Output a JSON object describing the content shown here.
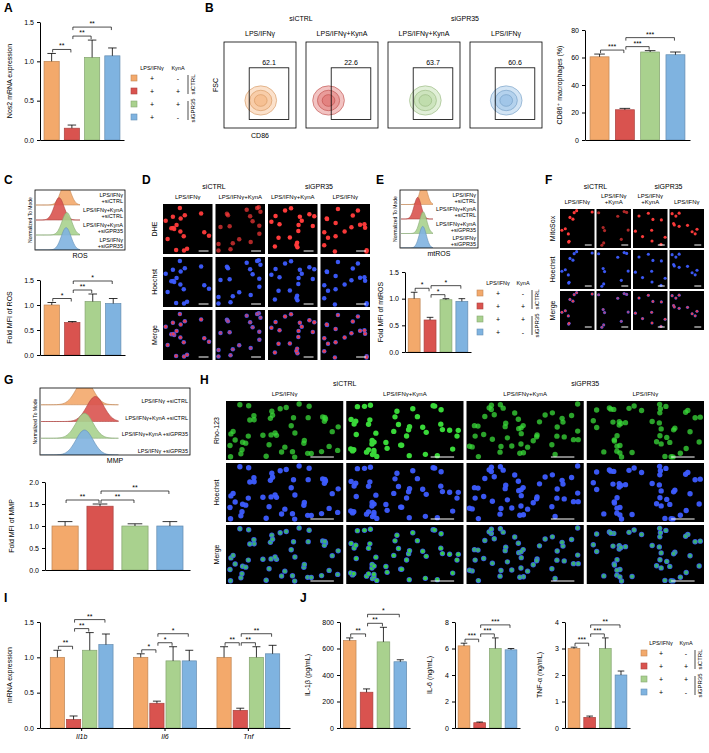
{
  "conditions": {
    "headers": [
      "LPS/IFNγ",
      "KynA"
    ],
    "marks": [
      [
        "+",
        "-"
      ],
      [
        "+",
        "+"
      ],
      [
        "+",
        "+"
      ],
      [
        "+",
        "-"
      ]
    ],
    "groups": [
      "siCTRL",
      "siGPR35"
    ],
    "colors": [
      "#f3a96b",
      "#d9534f",
      "#a9d18e",
      "#7fb3e0"
    ]
  },
  "flow": {
    "panel": "B",
    "groups": [
      "siCTRL",
      "siGPR35"
    ],
    "titles": [
      "LPS/IFNγ",
      "LPS/IFNγ+KynA",
      "LPS/IFNγ+KynA",
      "LPS/IFNγ"
    ],
    "gates": [
      62.1,
      22.6,
      63.7,
      60.6
    ],
    "x_label": "CD86",
    "y_label": "FSC"
  },
  "histograms": [
    {
      "x_label": "ROS",
      "y_label": "Normalized To Mode",
      "labels": [
        "LPS/IFNγ +siCTRL",
        "LPS/IFNγ+KynA +siCTRL",
        "LPS/IFNγ+KynA +siGPR35",
        "LPS/IFNγ +siGPR35"
      ]
    },
    {
      "x_label": "mtROS",
      "y_label": "Normalized To Mode",
      "labels": [
        "LPS/IFNγ +siCTRL",
        "LPS/IFNγ+KynA +siCTRL",
        "LPS/IFNγ+KynA +siGPR35",
        "LPS/IFNγ +siGPR35"
      ]
    },
    {
      "x_label": "MMP",
      "y_label": "Normalized To Mode",
      "labels": [
        "LPS/IFNγ +siCTRL",
        "LPS/IFNγ+KynA +siCTRL",
        "LPS/IFNγ+KynA +siGPR35",
        "LPS/IFNγ +siGPR35"
      ]
    }
  ],
  "microscopy": [
    {
      "panel": "D",
      "groups": [
        "siCTRL",
        "siGPR35"
      ],
      "columns": [
        "LPS/IFNγ",
        "LPS/IFNγ+KynA",
        "LPS/IFNγ+KynA",
        "LPS/IFNγ"
      ],
      "rows": [
        "DHE",
        "Hoechst",
        "Merge"
      ],
      "color": "#ff3b3b"
    },
    {
      "panel": "F",
      "groups": [
        "siCTRL",
        "siGPR35"
      ],
      "columns": [
        "LPS/IFNγ",
        "LPS/IFNγ+KynA",
        "LPS/IFNγ+KynA",
        "LPS/IFNγ"
      ],
      "rows": [
        "MitoSox",
        "Hoechst",
        "Merge"
      ],
      "color": "#ff3b3b"
    },
    {
      "panel": "H",
      "groups": [
        "siCTRL",
        "siGPR35"
      ],
      "columns": [
        "LPS/IFNγ",
        "LPS/IFNγ+KynA",
        "LPS/IFNγ+KynA",
        "LPS/IFNγ"
      ],
      "rows": [
        "Rho-123",
        "Hoechst",
        "Merge"
      ],
      "color": "#39d839"
    }
  ],
  "chart_data": [
    {
      "panel": "A",
      "type": "bar",
      "y_label": "Nos2 mRNA expression",
      "categories": [
        null,
        null,
        null,
        null
      ],
      "values": [
        1.0,
        0.15,
        1.05,
        1.07
      ],
      "errors": [
        0.1,
        0.04,
        0.22,
        0.1
      ],
      "colors": [
        "#f3a96b",
        "#d9534f",
        "#a9d18e",
        "#7fb3e0"
      ],
      "ylim": [
        0,
        1.5
      ],
      "yticks": [
        {
          "value": 0,
          "label": "0.0"
        },
        {
          "value": 0.5,
          "label": "0.5"
        },
        {
          "value": 1,
          "label": "1.0"
        },
        {
          "value": 1.5,
          "label": "1.5"
        }
      ],
      "tick_labels": "y",
      "significance": [
        {
          "bars": [
            0,
            1
          ],
          "label": "**"
        },
        {
          "bars": [
            1,
            2
          ],
          "label": "**"
        },
        {
          "bars": [
            1,
            3
          ],
          "label": "**"
        }
      ]
    },
    {
      "type": "bar",
      "y_label": "CD86⁺ macrophages (%)",
      "categories": [
        null,
        null,
        null,
        null
      ],
      "values": [
        60.5,
        22,
        64,
        62
      ],
      "errors": [
        2,
        1,
        1,
        2
      ],
      "colors": [
        "#f3a96b",
        "#d9534f",
        "#a9d18e",
        "#7fb3e0"
      ],
      "ylim": [
        0,
        80
      ],
      "yticks": [
        0,
        20,
        40,
        60,
        80
      ],
      "tick_labels": "y",
      "significance": [
        {
          "bars": [
            0,
            1
          ],
          "label": "***"
        },
        {
          "bars": [
            1,
            2
          ],
          "label": "***"
        },
        {
          "bars": [
            1,
            3
          ],
          "label": "***"
        }
      ]
    },
    {
      "panel": "C",
      "type": "bar",
      "y_label": "Fold MFI of ROS",
      "categories": [
        null,
        null,
        null,
        null
      ],
      "values": [
        1.0,
        0.65,
        1.07,
        1.03
      ],
      "errors": [
        0.05,
        0.02,
        0.15,
        0.1
      ],
      "colors": [
        "#f3a96b",
        "#d9534f",
        "#a9d18e",
        "#7fb3e0"
      ],
      "ylim": [
        0,
        1.5
      ],
      "yticks": [
        {
          "value": 0,
          "label": "0.0"
        },
        {
          "value": 0.5,
          "label": "0.5"
        },
        {
          "value": 1,
          "label": "1.0"
        },
        {
          "value": 1.5,
          "label": "1.5"
        }
      ],
      "tick_labels": "y",
      "significance": [
        {
          "bars": [
            0,
            1
          ],
          "label": "*"
        },
        {
          "bars": [
            1,
            2
          ],
          "label": "**"
        },
        {
          "bars": [
            1,
            3
          ],
          "label": "*"
        }
      ]
    },
    {
      "panel": "E",
      "type": "bar",
      "y_label": "Fold MFI of mtROS",
      "categories": [
        null,
        null,
        null,
        null
      ],
      "values": [
        1.0,
        0.6,
        0.98,
        0.95
      ],
      "errors": [
        0.12,
        0.05,
        0.02,
        0.05
      ],
      "colors": [
        "#f3a96b",
        "#d9534f",
        "#a9d18e",
        "#7fb3e0"
      ],
      "ylim": [
        0,
        1.5
      ],
      "yticks": [
        {
          "value": 0,
          "label": "0.0"
        },
        {
          "value": 0.5,
          "label": "0.5"
        },
        {
          "value": 1,
          "label": "1.0"
        },
        {
          "value": 1.5,
          "label": "1.5"
        }
      ],
      "tick_labels": "y",
      "significance": [
        {
          "bars": [
            0,
            1
          ],
          "label": "*"
        },
        {
          "bars": [
            1,
            2
          ],
          "label": "*"
        },
        {
          "bars": [
            1,
            3
          ],
          "label": "*"
        }
      ]
    },
    {
      "panel": "G",
      "type": "bar",
      "y_label": "Fold MFI of MMP",
      "categories": [
        null,
        null,
        null,
        null
      ],
      "values": [
        1.0,
        1.45,
        1.0,
        1.0
      ],
      "errors": [
        0.1,
        0.05,
        0.05,
        0.1
      ],
      "colors": [
        "#f3a96b",
        "#d9534f",
        "#a9d18e",
        "#7fb3e0"
      ],
      "ylim": [
        0,
        2
      ],
      "yticks": [
        {
          "value": 0,
          "label": "0.0"
        },
        {
          "value": 0.5,
          "label": "0.5"
        },
        {
          "value": 1,
          "label": "1.0"
        },
        {
          "value": 1.5,
          "label": "1.5"
        },
        {
          "value": 2,
          "label": "2.0"
        }
      ],
      "tick_labels": "y",
      "significance": [
        {
          "bars": [
            0,
            1
          ],
          "label": "**"
        },
        {
          "bars": [
            1,
            2
          ],
          "label": "**"
        },
        {
          "bars": [
            1,
            3
          ],
          "label": "**"
        }
      ]
    },
    {
      "panel": "I",
      "type": "bar",
      "y_label": "mRNA expression",
      "categories": [
        "Il1b",
        "Il6",
        "Tnf"
      ],
      "series": [
        {
          "color": "#f3a96b",
          "values": [
            1.0,
            1.0,
            1.0
          ],
          "errors": [
            0.1,
            0.05,
            0.15
          ]
        },
        {
          "color": "#d9534f",
          "values": [
            0.12,
            0.35,
            0.25
          ],
          "errors": [
            0.05,
            0.03,
            0.03
          ]
        },
        {
          "color": "#a9d18e",
          "values": [
            1.1,
            0.95,
            1.0
          ],
          "errors": [
            0.25,
            0.2,
            0.15
          ]
        },
        {
          "color": "#7fb3e0",
          "values": [
            1.18,
            0.95,
            1.05
          ],
          "errors": [
            0.15,
            0.15,
            0.12
          ]
        }
      ],
      "ylim": [
        0,
        1.5
      ],
      "yticks": [
        {
          "value": 0,
          "label": "0.0"
        },
        {
          "value": 0.5,
          "label": "0.5"
        },
        {
          "value": 1,
          "label": "1.0"
        },
        {
          "value": 1.5,
          "label": "1.5"
        }
      ],
      "significance": [
        {
          "category": 0,
          "bars": [
            0,
            1
          ],
          "label": "**"
        },
        {
          "category": 0,
          "bars": [
            1,
            2
          ],
          "label": "**"
        },
        {
          "category": 0,
          "bars": [
            1,
            3
          ],
          "label": "**"
        },
        {
          "category": 1,
          "bars": [
            0,
            1
          ],
          "label": "*"
        },
        {
          "category": 1,
          "bars": [
            1,
            2
          ],
          "label": "*"
        },
        {
          "category": 1,
          "bars": [
            1,
            3
          ],
          "label": "*"
        },
        {
          "category": 2,
          "bars": [
            0,
            1
          ],
          "label": "**"
        },
        {
          "category": 2,
          "bars": [
            1,
            2
          ],
          "label": "**"
        },
        {
          "category": 2,
          "bars": [
            1,
            3
          ],
          "label": "**"
        }
      ]
    },
    {
      "panel": "J",
      "type": "bar",
      "y_label": "IL-1β (pg/mL)",
      "categories": [
        null,
        null,
        null,
        null
      ],
      "values": [
        660,
        270,
        650,
        500
      ],
      "errors": [
        20,
        25,
        110,
        15
      ],
      "colors": [
        "#f3a96b",
        "#d9534f",
        "#a9d18e",
        "#7fb3e0"
      ],
      "ylim": [
        0,
        800
      ],
      "yticks": [
        0,
        200,
        400,
        600,
        800
      ],
      "tick_labels": "y",
      "significance": [
        {
          "bars": [
            0,
            1
          ],
          "label": "**"
        },
        {
          "bars": [
            1,
            2
          ],
          "label": "**"
        },
        {
          "bars": [
            1,
            3
          ],
          "label": "*"
        }
      ]
    },
    {
      "type": "bar",
      "y_label": "IL-6 (ng/mL)",
      "categories": [
        null,
        null,
        null,
        null
      ],
      "values": [
        6.2,
        0.4,
        6.0,
        5.9
      ],
      "errors": [
        0.2,
        0.05,
        0.8,
        0.1
      ],
      "colors": [
        "#f3a96b",
        "#d9534f",
        "#a9d18e",
        "#7fb3e0"
      ],
      "ylim": [
        0,
        8
      ],
      "yticks": [
        0,
        2,
        4,
        6,
        8
      ],
      "tick_labels": "y",
      "significance": [
        {
          "bars": [
            0,
            1
          ],
          "label": "***"
        },
        {
          "bars": [
            1,
            2
          ],
          "label": "***"
        },
        {
          "bars": [
            1,
            3
          ],
          "label": "***"
        }
      ]
    },
    {
      "type": "bar",
      "y_label": "TNF-α (ng/mL)",
      "categories": [
        null,
        null,
        null,
        null
      ],
      "values": [
        3.0,
        0.4,
        3.0,
        2.0
      ],
      "errors": [
        0.05,
        0.05,
        0.4,
        0.15
      ],
      "colors": [
        "#f3a96b",
        "#d9534f",
        "#a9d18e",
        "#7fb3e0"
      ],
      "ylim": [
        0,
        4
      ],
      "yticks": [
        0,
        1,
        2,
        3,
        4
      ],
      "tick_labels": "y",
      "significance": [
        {
          "bars": [
            0,
            1
          ],
          "label": "***"
        },
        {
          "bars": [
            1,
            2
          ],
          "label": "***"
        },
        {
          "bars": [
            1,
            3
          ],
          "label": "**"
        }
      ]
    }
  ]
}
